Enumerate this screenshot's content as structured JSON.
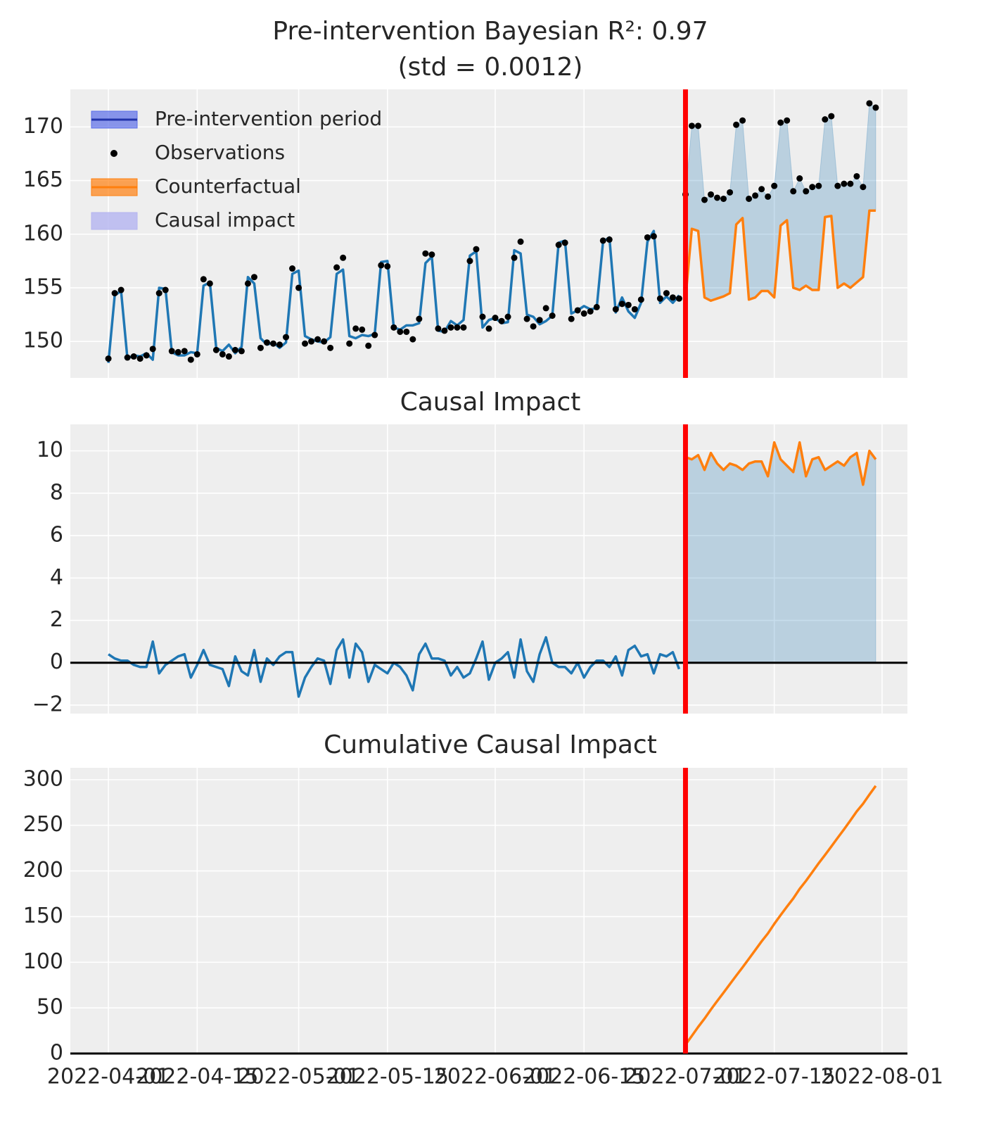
{
  "chart_data": {
    "type": "line",
    "title": "Pre-intervention Bayesian R²: 0.97",
    "subtitle": "(std = 0.0012)",
    "x": [
      "2022-04-01",
      "2022-04-02",
      "2022-04-03",
      "2022-04-04",
      "2022-04-05",
      "2022-04-06",
      "2022-04-07",
      "2022-04-08",
      "2022-04-09",
      "2022-04-10",
      "2022-04-11",
      "2022-04-12",
      "2022-04-13",
      "2022-04-14",
      "2022-04-15",
      "2022-04-16",
      "2022-04-17",
      "2022-04-18",
      "2022-04-19",
      "2022-04-20",
      "2022-04-21",
      "2022-04-22",
      "2022-04-23",
      "2022-04-24",
      "2022-04-25",
      "2022-04-26",
      "2022-04-27",
      "2022-04-28",
      "2022-04-29",
      "2022-04-30",
      "2022-05-01",
      "2022-05-02",
      "2022-05-03",
      "2022-05-04",
      "2022-05-05",
      "2022-05-06",
      "2022-05-07",
      "2022-05-08",
      "2022-05-09",
      "2022-05-10",
      "2022-05-11",
      "2022-05-12",
      "2022-05-13",
      "2022-05-14",
      "2022-05-15",
      "2022-05-16",
      "2022-05-17",
      "2022-05-18",
      "2022-05-19",
      "2022-05-20",
      "2022-05-21",
      "2022-05-22",
      "2022-05-23",
      "2022-05-24",
      "2022-05-25",
      "2022-05-26",
      "2022-05-27",
      "2022-05-28",
      "2022-05-29",
      "2022-05-30",
      "2022-05-31",
      "2022-06-01",
      "2022-06-02",
      "2022-06-03",
      "2022-06-04",
      "2022-06-05",
      "2022-06-06",
      "2022-06-07",
      "2022-06-08",
      "2022-06-09",
      "2022-06-10",
      "2022-06-11",
      "2022-06-12",
      "2022-06-13",
      "2022-06-14",
      "2022-06-15",
      "2022-06-16",
      "2022-06-17",
      "2022-06-18",
      "2022-06-19",
      "2022-06-20",
      "2022-06-21",
      "2022-06-22",
      "2022-06-23",
      "2022-06-24",
      "2022-06-25",
      "2022-06-26",
      "2022-06-27",
      "2022-06-28",
      "2022-06-29",
      "2022-06-30",
      "2022-07-01",
      "2022-07-02",
      "2022-07-03",
      "2022-07-04",
      "2022-07-05",
      "2022-07-06",
      "2022-07-07",
      "2022-07-08",
      "2022-07-09",
      "2022-07-10",
      "2022-07-11",
      "2022-07-12",
      "2022-07-13",
      "2022-07-14",
      "2022-07-15",
      "2022-07-16",
      "2022-07-17",
      "2022-07-18",
      "2022-07-19",
      "2022-07-20",
      "2022-07-21",
      "2022-07-22",
      "2022-07-23",
      "2022-07-24",
      "2022-07-25",
      "2022-07-26",
      "2022-07-27",
      "2022-07-28",
      "2022-07-29",
      "2022-07-30",
      "2022-07-31"
    ],
    "xlim": [
      "2022-03-26",
      "2022-08-05"
    ],
    "xticks": [
      "2022-04-01",
      "2022-04-15",
      "2022-05-01",
      "2022-05-15",
      "2022-06-01",
      "2022-06-15",
      "2022-07-01",
      "2022-07-15",
      "2022-08-01"
    ],
    "intervention": "2022-07-01",
    "intervention_color": "#ff0000",
    "grid": true,
    "panels": [
      {
        "ylim": [
          146.6,
          173.5
        ],
        "yticks": [
          150,
          155,
          160,
          165,
          170
        ],
        "legend": "upper left",
        "series": [
          {
            "name": "Pre-intervention period",
            "kind": "line",
            "color": "#1f77b4",
            "legend_color": "#5b6ee8",
            "values": [
              148.0,
              154.3,
              154.7,
              148.4,
              148.7,
              148.6,
              148.9,
              148.3,
              155.0,
              154.9,
              149.0,
              148.7,
              148.7,
              149.0,
              148.9,
              155.2,
              155.5,
              149.4,
              149.1,
              149.7,
              148.9,
              149.5,
              156.0,
              155.4,
              150.3,
              149.7,
              149.9,
              149.4,
              149.9,
              156.3,
              156.6,
              150.5,
              150.2,
              150.0,
              149.9,
              150.4,
              156.3,
              156.7,
              150.5,
              150.3,
              150.6,
              150.5,
              150.7,
              157.4,
              157.5,
              151.3,
              151.1,
              151.5,
              151.5,
              151.7,
              157.3,
              157.9,
              151.0,
              150.9,
              151.9,
              151.5,
              152.0,
              158.0,
              158.4,
              151.3,
              152.0,
              152.2,
              151.7,
              151.8,
              158.5,
              158.2,
              152.5,
              152.3,
              151.6,
              151.9,
              152.4,
              159.2,
              159.4,
              152.6,
              152.9,
              153.3,
              153.0,
              153.1,
              159.3,
              159.7,
              152.7,
              154.1,
              152.8,
              152.2,
              153.6,
              159.3,
              160.3,
              153.6,
              154.2,
              153.6,
              154.3,
              null,
              null,
              null,
              null,
              null,
              null,
              null,
              null,
              null,
              null,
              null,
              null,
              null,
              null,
              null,
              null,
              null,
              null,
              null,
              null,
              null,
              null,
              null,
              null,
              null,
              null,
              null,
              null,
              null,
              null,
              null
            ]
          },
          {
            "name": "Observations",
            "kind": "scatter",
            "color": "#000000",
            "values": [
              148.4,
              154.5,
              154.8,
              148.5,
              148.6,
              148.4,
              148.7,
              149.3,
              154.5,
              154.8,
              149.1,
              149.0,
              149.1,
              148.3,
              148.8,
              155.8,
              155.4,
              149.2,
              148.8,
              148.6,
              149.2,
              149.1,
              155.4,
              156.0,
              149.4,
              149.9,
              149.8,
              149.7,
              150.4,
              156.8,
              155.0,
              149.8,
              150.0,
              150.2,
              150.0,
              149.4,
              156.9,
              157.8,
              149.8,
              151.2,
              151.1,
              149.6,
              150.6,
              157.1,
              157.0,
              151.3,
              150.9,
              150.9,
              150.2,
              152.1,
              158.2,
              158.1,
              151.2,
              151.0,
              151.3,
              151.3,
              151.3,
              157.5,
              158.6,
              152.3,
              151.2,
              152.2,
              151.9,
              152.3,
              157.8,
              159.3,
              152.1,
              151.4,
              152.0,
              153.1,
              152.4,
              159.0,
              159.2,
              152.1,
              152.9,
              152.6,
              152.8,
              153.2,
              159.4,
              159.5,
              153.0,
              153.5,
              153.4,
              153.0,
              153.9,
              159.7,
              159.8,
              154.0,
              154.5,
              154.1,
              154.0,
              163.7,
              170.1,
              170.1,
              163.2,
              163.7,
              163.4,
              163.3,
              163.9,
              170.2,
              170.6,
              163.3,
              163.6,
              164.2,
              163.5,
              164.5,
              170.4,
              170.6,
              164.0,
              165.2,
              164.0,
              164.4,
              164.5,
              170.7,
              171.0,
              164.5,
              164.7,
              164.7,
              165.4,
              164.4,
              172.2,
              171.8
            ]
          },
          {
            "name": "Counterfactual",
            "kind": "line",
            "color": "#ff7f0e",
            "values": [
              null,
              null,
              null,
              null,
              null,
              null,
              null,
              null,
              null,
              null,
              null,
              null,
              null,
              null,
              null,
              null,
              null,
              null,
              null,
              null,
              null,
              null,
              null,
              null,
              null,
              null,
              null,
              null,
              null,
              null,
              null,
              null,
              null,
              null,
              null,
              null,
              null,
              null,
              null,
              null,
              null,
              null,
              null,
              null,
              null,
              null,
              null,
              null,
              null,
              null,
              null,
              null,
              null,
              null,
              null,
              null,
              null,
              null,
              null,
              null,
              null,
              null,
              null,
              null,
              null,
              null,
              null,
              null,
              null,
              null,
              null,
              null,
              null,
              null,
              null,
              null,
              null,
              null,
              null,
              null,
              null,
              null,
              null,
              null,
              null,
              null,
              null,
              null,
              null,
              null,
              null,
              154.0,
              160.5,
              160.3,
              154.1,
              153.8,
              154.0,
              154.2,
              154.5,
              160.9,
              161.5,
              153.9,
              154.1,
              154.7,
              154.7,
              154.1,
              160.8,
              161.3,
              155.0,
              154.8,
              155.2,
              154.8,
              154.8,
              161.6,
              161.7,
              155.0,
              155.4,
              155.0,
              155.5,
              156.0,
              162.2,
              162.2
            ]
          },
          {
            "name": "Causal impact",
            "kind": "fill_between",
            "color": "#1f77b4",
            "legend_color": "#b4b4f0"
          }
        ]
      },
      {
        "title": "Causal Impact",
        "ylim": [
          -2.4,
          11.25
        ],
        "yticks": [
          {
            "value": -2,
            "label": "−2"
          },
          0,
          2,
          4,
          6,
          8,
          10
        ],
        "hline": 0,
        "series": [
          {
            "kind": "line",
            "color": "#1f77b4",
            "values": [
              0.4,
              0.2,
              0.1,
              0.1,
              -0.1,
              -0.2,
              -0.2,
              1.0,
              -0.5,
              -0.1,
              0.1,
              0.3,
              0.4,
              -0.7,
              -0.1,
              0.6,
              -0.1,
              -0.2,
              -0.3,
              -1.1,
              0.3,
              -0.4,
              -0.6,
              0.6,
              -0.9,
              0.2,
              -0.1,
              0.3,
              0.5,
              0.5,
              -1.6,
              -0.7,
              -0.2,
              0.2,
              0.1,
              -1.0,
              0.6,
              1.1,
              -0.7,
              0.9,
              0.5,
              -0.9,
              -0.1,
              -0.3,
              -0.5,
              0.0,
              -0.2,
              -0.6,
              -1.3,
              0.4,
              0.9,
              0.2,
              0.2,
              0.1,
              -0.6,
              -0.2,
              -0.7,
              -0.5,
              0.2,
              1.0,
              -0.8,
              0.0,
              0.2,
              0.5,
              -0.7,
              1.1,
              -0.4,
              -0.9,
              0.4,
              1.2,
              0.0,
              -0.2,
              -0.2,
              -0.5,
              0.0,
              -0.7,
              -0.2,
              0.1,
              0.1,
              -0.2,
              0.3,
              -0.6,
              0.6,
              0.8,
              0.3,
              0.4,
              -0.5,
              0.4,
              0.3,
              0.5,
              -0.3,
              null,
              null,
              null,
              null,
              null,
              null,
              null,
              null,
              null,
              null,
              null,
              null,
              null,
              null,
              null,
              null,
              null,
              null,
              null,
              null,
              null,
              null,
              null,
              null,
              null,
              null,
              null,
              null,
              null,
              null,
              null
            ]
          },
          {
            "kind": "line",
            "color": "#ff7f0e",
            "fill_to_zero": true,
            "values": [
              null,
              null,
              null,
              null,
              null,
              null,
              null,
              null,
              null,
              null,
              null,
              null,
              null,
              null,
              null,
              null,
              null,
              null,
              null,
              null,
              null,
              null,
              null,
              null,
              null,
              null,
              null,
              null,
              null,
              null,
              null,
              null,
              null,
              null,
              null,
              null,
              null,
              null,
              null,
              null,
              null,
              null,
              null,
              null,
              null,
              null,
              null,
              null,
              null,
              null,
              null,
              null,
              null,
              null,
              null,
              null,
              null,
              null,
              null,
              null,
              null,
              null,
              null,
              null,
              null,
              null,
              null,
              null,
              null,
              null,
              null,
              null,
              null,
              null,
              null,
              null,
              null,
              null,
              null,
              null,
              null,
              null,
              null,
              null,
              null,
              null,
              null,
              null,
              null,
              null,
              null,
              9.7,
              9.6,
              9.8,
              9.1,
              9.9,
              9.4,
              9.1,
              9.4,
              9.3,
              9.1,
              9.4,
              9.5,
              9.5,
              8.8,
              10.4,
              9.6,
              9.3,
              9.0,
              10.4,
              8.8,
              9.6,
              9.7,
              9.1,
              9.3,
              9.5,
              9.3,
              9.7,
              9.9,
              8.4,
              10.0,
              9.6
            ]
          }
        ]
      },
      {
        "title": "Cumulative Causal Impact",
        "ylim": [
          0,
          313
        ],
        "yticks": [
          0,
          50,
          100,
          150,
          200,
          250,
          300
        ],
        "hline": 0,
        "series": [
          {
            "kind": "line",
            "color": "#ff7f0e",
            "values": [
              null,
              null,
              null,
              null,
              null,
              null,
              null,
              null,
              null,
              null,
              null,
              null,
              null,
              null,
              null,
              null,
              null,
              null,
              null,
              null,
              null,
              null,
              null,
              null,
              null,
              null,
              null,
              null,
              null,
              null,
              null,
              null,
              null,
              null,
              null,
              null,
              null,
              null,
              null,
              null,
              null,
              null,
              null,
              null,
              null,
              null,
              null,
              null,
              null,
              null,
              null,
              null,
              null,
              null,
              null,
              null,
              null,
              null,
              null,
              null,
              null,
              null,
              null,
              null,
              null,
              null,
              null,
              null,
              null,
              null,
              null,
              null,
              null,
              null,
              null,
              null,
              null,
              null,
              null,
              null,
              null,
              null,
              null,
              null,
              null,
              null,
              null,
              null,
              null,
              null,
              null,
              9.7,
              19.3,
              29.1,
              38.2,
              48.1,
              57.5,
              66.6,
              76.0,
              85.3,
              94.4,
              103.8,
              113.3,
              122.8,
              131.6,
              142.0,
              151.6,
              160.9,
              169.9,
              180.3,
              189.1,
              198.7,
              208.4,
              217.5,
              226.8,
              236.3,
              245.6,
              255.3,
              265.2,
              273.6,
              283.6,
              293.2
            ]
          }
        ]
      }
    ]
  }
}
